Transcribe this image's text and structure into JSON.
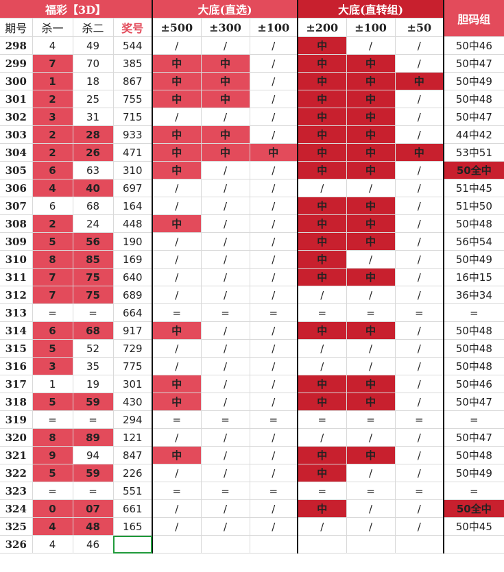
{
  "headers": {
    "group_title": "福彩【3D】",
    "group_a_title": "大底(直选)",
    "group_b_title": "大底(直转组)",
    "dan_title": "胆码组",
    "col_period": "期号",
    "col_kill1": "杀一",
    "col_kill2": "杀二",
    "col_prize": "奖号",
    "a_cols": [
      "±500",
      "±300",
      "±100"
    ],
    "b_cols": [
      "±200",
      "±100",
      "±50"
    ]
  },
  "colors": {
    "accent": "#e34b5b",
    "accent_dark": "#c8202e"
  },
  "rows": [
    {
      "p": "298",
      "k1": "4",
      "k2": "49",
      "prize": "544",
      "a": [
        "/",
        "/",
        "/"
      ],
      "b": [
        "中",
        "/",
        "/"
      ],
      "dan": "50中46",
      "k1h": false,
      "k2h": false,
      "dh": false
    },
    {
      "p": "299",
      "k1": "7",
      "k2": "70",
      "prize": "385",
      "a": [
        "中",
        "中",
        "/"
      ],
      "b": [
        "中",
        "中",
        "/"
      ],
      "dan": "50中47",
      "k1h": true,
      "k2h": false,
      "dh": false
    },
    {
      "p": "300",
      "k1": "1",
      "k2": "18",
      "prize": "867",
      "a": [
        "中",
        "中",
        "/"
      ],
      "b": [
        "中",
        "中",
        "中"
      ],
      "dan": "50中49",
      "k1h": true,
      "k2h": false,
      "dh": false
    },
    {
      "p": "301",
      "k1": "2",
      "k2": "25",
      "prize": "755",
      "a": [
        "中",
        "中",
        "/"
      ],
      "b": [
        "中",
        "中",
        "/"
      ],
      "dan": "50中48",
      "k1h": true,
      "k2h": false,
      "dh": false
    },
    {
      "p": "302",
      "k1": "3",
      "k2": "31",
      "prize": "715",
      "a": [
        "/",
        "/",
        "/"
      ],
      "b": [
        "中",
        "中",
        "/"
      ],
      "dan": "50中47",
      "k1h": true,
      "k2h": false,
      "dh": false
    },
    {
      "p": "303",
      "k1": "2",
      "k2": "28",
      "prize": "933",
      "a": [
        "中",
        "中",
        "/"
      ],
      "b": [
        "中",
        "中",
        "/"
      ],
      "dan": "44中42",
      "k1h": true,
      "k2h": true,
      "dh": false
    },
    {
      "p": "304",
      "k1": "2",
      "k2": "26",
      "prize": "471",
      "a": [
        "中",
        "中",
        "中"
      ],
      "b": [
        "中",
        "中",
        "中"
      ],
      "dan": "53中51",
      "k1h": true,
      "k2h": true,
      "dh": false
    },
    {
      "p": "305",
      "k1": "6",
      "k2": "63",
      "prize": "310",
      "a": [
        "中",
        "/",
        "/"
      ],
      "b": [
        "中",
        "中",
        "/"
      ],
      "dan": "50全中",
      "k1h": true,
      "k2h": false,
      "dh": true
    },
    {
      "p": "306",
      "k1": "4",
      "k2": "40",
      "prize": "697",
      "a": [
        "/",
        "/",
        "/"
      ],
      "b": [
        "/",
        "/",
        "/"
      ],
      "dan": "51中45",
      "k1h": true,
      "k2h": true,
      "dh": false
    },
    {
      "p": "307",
      "k1": "6",
      "k2": "68",
      "prize": "164",
      "a": [
        "/",
        "/",
        "/"
      ],
      "b": [
        "中",
        "中",
        "/"
      ],
      "dan": "51中50",
      "k1h": false,
      "k2h": false,
      "dh": false
    },
    {
      "p": "308",
      "k1": "2",
      "k2": "24",
      "prize": "448",
      "a": [
        "中",
        "/",
        "/"
      ],
      "b": [
        "中",
        "中",
        "/"
      ],
      "dan": "50中48",
      "k1h": true,
      "k2h": false,
      "dh": false
    },
    {
      "p": "309",
      "k1": "5",
      "k2": "56",
      "prize": "190",
      "a": [
        "/",
        "/",
        "/"
      ],
      "b": [
        "中",
        "中",
        "/"
      ],
      "dan": "56中54",
      "k1h": true,
      "k2h": true,
      "dh": false
    },
    {
      "p": "310",
      "k1": "8",
      "k2": "85",
      "prize": "169",
      "a": [
        "/",
        "/",
        "/"
      ],
      "b": [
        "中",
        "/",
        "/"
      ],
      "dan": "50中49",
      "k1h": true,
      "k2h": true,
      "dh": false
    },
    {
      "p": "311",
      "k1": "7",
      "k2": "75",
      "prize": "640",
      "a": [
        "/",
        "/",
        "/"
      ],
      "b": [
        "中",
        "中",
        "/"
      ],
      "dan": "16中15",
      "k1h": true,
      "k2h": true,
      "dh": false
    },
    {
      "p": "312",
      "k1": "7",
      "k2": "75",
      "prize": "689",
      "a": [
        "/",
        "/",
        "/"
      ],
      "b": [
        "/",
        "/",
        "/"
      ],
      "dan": "36中34",
      "k1h": true,
      "k2h": true,
      "dh": false
    },
    {
      "p": "313",
      "k1": "=",
      "k2": "=",
      "prize": "664",
      "a": [
        "=",
        "=",
        "="
      ],
      "b": [
        "=",
        "=",
        "="
      ],
      "dan": "=",
      "k1h": false,
      "k2h": false,
      "dh": false
    },
    {
      "p": "314",
      "k1": "6",
      "k2": "68",
      "prize": "917",
      "a": [
        "中",
        "/",
        "/"
      ],
      "b": [
        "中",
        "中",
        "/"
      ],
      "dan": "50中48",
      "k1h": true,
      "k2h": true,
      "dh": false
    },
    {
      "p": "315",
      "k1": "5",
      "k2": "52",
      "prize": "729",
      "a": [
        "/",
        "/",
        "/"
      ],
      "b": [
        "/",
        "/",
        "/"
      ],
      "dan": "50中48",
      "k1h": true,
      "k2h": false,
      "dh": false
    },
    {
      "p": "316",
      "k1": "3",
      "k2": "35",
      "prize": "775",
      "a": [
        "/",
        "/",
        "/"
      ],
      "b": [
        "/",
        "/",
        "/"
      ],
      "dan": "50中48",
      "k1h": true,
      "k2h": false,
      "dh": false
    },
    {
      "p": "317",
      "k1": "1",
      "k2": "19",
      "prize": "301",
      "a": [
        "中",
        "/",
        "/"
      ],
      "b": [
        "中",
        "中",
        "/"
      ],
      "dan": "50中46",
      "k1h": false,
      "k2h": false,
      "dh": false
    },
    {
      "p": "318",
      "k1": "5",
      "k2": "59",
      "prize": "430",
      "a": [
        "中",
        "/",
        "/"
      ],
      "b": [
        "中",
        "中",
        "/"
      ],
      "dan": "50中47",
      "k1h": true,
      "k2h": true,
      "dh": false
    },
    {
      "p": "319",
      "k1": "=",
      "k2": "=",
      "prize": "294",
      "a": [
        "=",
        "=",
        "="
      ],
      "b": [
        "=",
        "=",
        "="
      ],
      "dan": "=",
      "k1h": false,
      "k2h": false,
      "dh": false
    },
    {
      "p": "320",
      "k1": "8",
      "k2": "89",
      "prize": "121",
      "a": [
        "/",
        "/",
        "/"
      ],
      "b": [
        "/",
        "/",
        "/"
      ],
      "dan": "50中47",
      "k1h": true,
      "k2h": true,
      "dh": false
    },
    {
      "p": "321",
      "k1": "9",
      "k2": "94",
      "prize": "847",
      "a": [
        "中",
        "/",
        "/"
      ],
      "b": [
        "中",
        "中",
        "/"
      ],
      "dan": "50中48",
      "k1h": true,
      "k2h": false,
      "dh": false
    },
    {
      "p": "322",
      "k1": "5",
      "k2": "59",
      "prize": "226",
      "a": [
        "/",
        "/",
        "/"
      ],
      "b": [
        "中",
        "/",
        "/"
      ],
      "dan": "50中49",
      "k1h": true,
      "k2h": true,
      "dh": false
    },
    {
      "p": "323",
      "k1": "=",
      "k2": "=",
      "prize": "551",
      "a": [
        "=",
        "=",
        "="
      ],
      "b": [
        "=",
        "=",
        "="
      ],
      "dan": "=",
      "k1h": false,
      "k2h": false,
      "dh": false
    },
    {
      "p": "324",
      "k1": "0",
      "k2": "07",
      "prize": "661",
      "a": [
        "/",
        "/",
        "/"
      ],
      "b": [
        "中",
        "/",
        "/"
      ],
      "dan": "50全中",
      "k1h": true,
      "k2h": true,
      "dh": true
    },
    {
      "p": "325",
      "k1": "4",
      "k2": "48",
      "prize": "165",
      "a": [
        "/",
        "/",
        "/"
      ],
      "b": [
        "/",
        "/",
        "/"
      ],
      "dan": "50中45",
      "k1h": true,
      "k2h": true,
      "dh": false
    },
    {
      "p": "326",
      "k1": "4",
      "k2": "46",
      "prize": "",
      "a": [
        "",
        "",
        ""
      ],
      "b": [
        "",
        "",
        ""
      ],
      "dan": "",
      "k1h": false,
      "k2h": false,
      "dh": false
    }
  ]
}
